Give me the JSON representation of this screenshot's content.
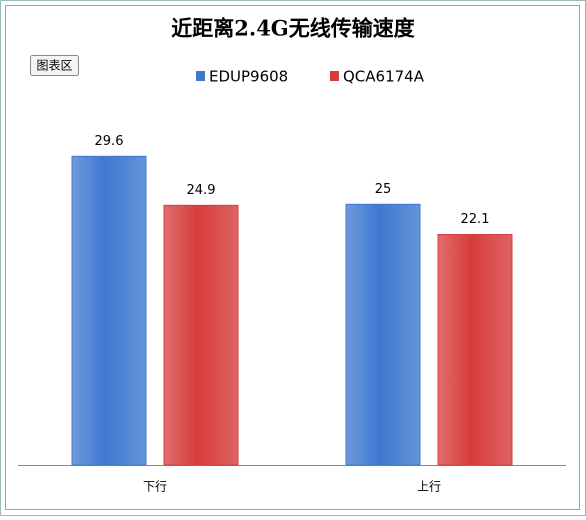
{
  "chart_data": {
    "type": "bar",
    "title": "近距离2.4G无线传输速度",
    "categories": [
      "下行",
      "上行"
    ],
    "series": [
      {
        "name": "EDUP9608",
        "color": "#3f78cf",
        "values": [
          29.6,
          25
        ]
      },
      {
        "name": "QCA6174A",
        "color": "#d63c3c",
        "values": [
          24.9,
          22.1
        ]
      }
    ],
    "ylim": [
      0,
      35
    ],
    "legend": "top"
  },
  "tooltip": "图表区"
}
